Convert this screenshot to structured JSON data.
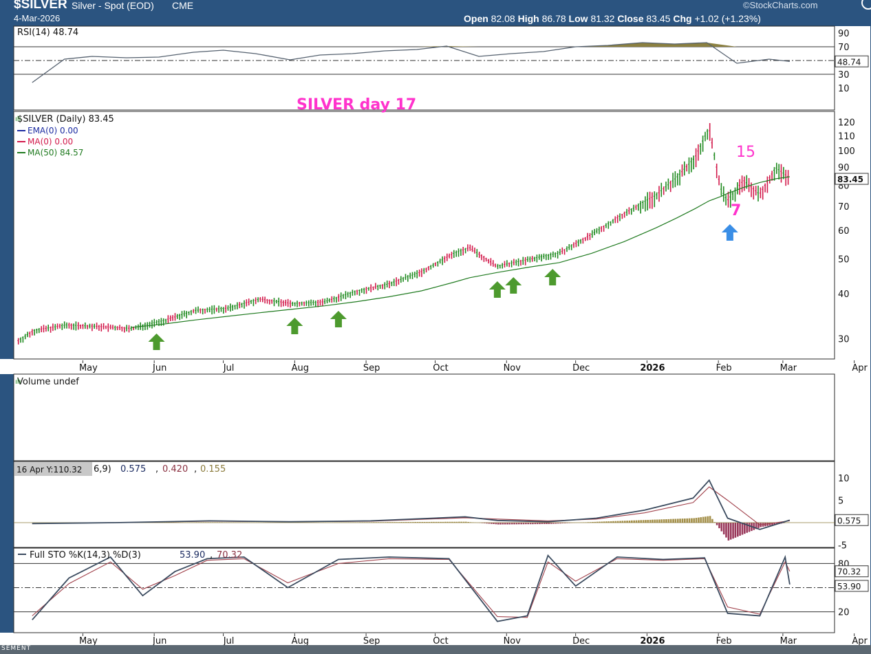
{
  "header": {
    "symbol": "$SILVER",
    "name": "Silver - Spot (EOD)",
    "exchange": "CME",
    "date": "4-Mar-2026",
    "open_label": "Open",
    "open": "82.08",
    "high_label": "High",
    "high": "86.78",
    "low_label": "Low",
    "low": "81.32",
    "close_label": "Close",
    "close": "83.45",
    "chg_label": "Chg",
    "chg": "+1.02 (+1.23%)",
    "watermark": "©StockCharts.com"
  },
  "footer": {
    "text": "SEMENT"
  },
  "colors": {
    "header_bg": "#2b5480",
    "up": "#1f8a1f",
    "down": "#d2184a",
    "ma50": "#1f7a1f",
    "magenta": "#ff33cc",
    "arrow_green": "#4d9a2e",
    "arrow_blue": "#3a8ee6",
    "rsi_fill": "#8b8040",
    "macd_hist_up": "#a4904a",
    "macd_hist_down": "#9a3a5c",
    "line_dark": "#3a4a5e",
    "signal_red": "#a0404a"
  },
  "time_axis": {
    "labels": [
      "May",
      "Jun",
      "Jul",
      "Aug",
      "Sep",
      "Oct",
      "Nov",
      "Dec",
      "2026",
      "Feb",
      "Mar",
      "Apr"
    ],
    "bold": "2026"
  },
  "panels": {
    "rsi": {
      "legend": "RSI(14) 48.74",
      "value_tag": "48.74",
      "ticks": [
        "90",
        "70",
        "50",
        "30",
        "10"
      ]
    },
    "price": {
      "annotation": "SILVER day 17",
      "legend": "$SILVER (Daily) 83.45",
      "legend_items": [
        {
          "text": "EMA(0) 0.00",
          "color": "#1a2aa0"
        },
        {
          "text": "MA(0) 0.00",
          "color": "#d2184a"
        },
        {
          "text": "MA(50) 84.57",
          "color": "#1f7a1f"
        }
      ],
      "value_tag": "83.45",
      "ticks": [
        "120",
        "110",
        "100",
        "90",
        "80",
        "70",
        "60",
        "50",
        "40",
        "30"
      ],
      "cycle_labels": [
        "15",
        "7"
      ]
    },
    "volume": {
      "legend": "Volume undef"
    },
    "macd": {
      "legend_prefix": "6,9)",
      "values": [
        "0.575",
        "0.420",
        "0.155"
      ],
      "tooltip": "16 Apr Y:110.32",
      "value_tag": "0.575",
      "ticks": [
        "10",
        "5",
        "-5"
      ]
    },
    "sto": {
      "legend": "Full STO %K(14,3) %D(3)",
      "values": [
        "53.90",
        "70.32"
      ],
      "value_tags": [
        "70.32",
        "53.90"
      ],
      "ticks": [
        "80",
        "20"
      ]
    }
  },
  "chart_data": [
    {
      "type": "line",
      "title": "RSI(14)",
      "ylim": [
        0,
        100
      ],
      "reference_lines": [
        70,
        50,
        30
      ],
      "x": [
        "Apr-09",
        "Apr-23",
        "May-05",
        "May-20",
        "Jun-03",
        "Jun-18",
        "Jul-01",
        "Jul-15",
        "Jul-30",
        "Aug-12",
        "Aug-26",
        "Sep-09",
        "Sep-23",
        "Oct-06",
        "Oct-20",
        "Nov-03",
        "Nov-17",
        "Dec-01",
        "Dec-15",
        "Dec-30",
        "Jan-13",
        "Jan-27",
        "Feb-09",
        "Feb-23",
        "Mar-04"
      ],
      "values": [
        18,
        52,
        56,
        54,
        55,
        62,
        65,
        60,
        51,
        58,
        60,
        64,
        66,
        71,
        56,
        60,
        63,
        70,
        72,
        76,
        74,
        76,
        46,
        52,
        48.74
      ]
    },
    {
      "type": "line",
      "title": "$SILVER (Daily)",
      "scale": "log",
      "ylim": [
        27,
        125
      ],
      "x": [
        "Apr-03",
        "Apr-10",
        "Apr-24",
        "May-08",
        "May-22",
        "Jun-05",
        "Jun-19",
        "Jul-03",
        "Jul-17",
        "Jul-31",
        "Aug-14",
        "Aug-28",
        "Sep-11",
        "Sep-25",
        "Oct-09",
        "Oct-16",
        "Oct-28",
        "Nov-10",
        "Nov-24",
        "Dec-08",
        "Dec-22",
        "Jan-05",
        "Jan-14",
        "Jan-22",
        "Jan-28",
        "Feb-02",
        "Feb-05",
        "Feb-12",
        "Feb-19",
        "Feb-26",
        "Mar-04"
      ],
      "series": [
        {
          "name": "$SILVER (Daily)",
          "values": [
            29.5,
            31.5,
            32.6,
            32.3,
            31.9,
            33.5,
            35.8,
            36.3,
            38.5,
            37.4,
            37.8,
            40.5,
            42.4,
            45.8,
            51.5,
            53.5,
            47.5,
            49.5,
            51.7,
            58.2,
            66.5,
            74.5,
            83.5,
            95.0,
            115.0,
            78.0,
            72.0,
            82.0,
            75.0,
            89.0,
            83.45
          ]
        },
        {
          "name": "MA(50)",
          "values": [
            null,
            null,
            null,
            null,
            32.2,
            32.9,
            33.8,
            34.6,
            35.4,
            36.2,
            37.0,
            38.0,
            39.2,
            40.7,
            43.0,
            44.3,
            45.8,
            47.3,
            48.8,
            51.8,
            55.8,
            61.0,
            65.0,
            69.0,
            72.5,
            74.5,
            76.0,
            79.0,
            81.5,
            83.5,
            84.57
          ]
        }
      ],
      "annotations": [
        {
          "text": "15",
          "date": "Feb-23"
        },
        {
          "text": "7",
          "date": "Feb-17"
        }
      ],
      "markers": [
        "Jun-02",
        "Aug-01",
        "Aug-20",
        "Oct-28",
        "Nov-04",
        "Nov-21",
        "Feb-06"
      ]
    },
    {
      "type": "line",
      "title": "MACD",
      "x": [
        "Apr-09",
        "May-15",
        "Jun-25",
        "Jul-30",
        "Sep-03",
        "Oct-14",
        "Oct-28",
        "Nov-19",
        "Dec-10",
        "Dec-31",
        "Jan-21",
        "Jan-28",
        "Feb-05",
        "Feb-19",
        "Mar-04"
      ],
      "series": [
        {
          "name": "MACD",
          "values": [
            -0.2,
            0.0,
            0.4,
            0.2,
            0.4,
            1.3,
            0.5,
            0.2,
            1.0,
            2.8,
            5.5,
            9.5,
            1.0,
            -1.5,
            0.575
          ]
        },
        {
          "name": "Signal",
          "values": [
            -0.2,
            0.0,
            0.3,
            0.2,
            0.3,
            1.1,
            0.8,
            0.4,
            0.8,
            2.2,
            4.5,
            8.0,
            5.0,
            -0.5,
            0.42
          ]
        },
        {
          "name": "Histogram",
          "values": [
            0.0,
            0.0,
            0.1,
            0.0,
            0.1,
            0.2,
            -0.4,
            -0.3,
            0.2,
            0.6,
            1.0,
            1.5,
            -4.0,
            -1.0,
            0.155
          ]
        }
      ]
    },
    {
      "type": "line",
      "title": "Full STO %K(14,3) %D(3)",
      "ylim": [
        0,
        100
      ],
      "reference_lines": [
        80,
        50,
        20
      ],
      "x": [
        "Apr-09",
        "Apr-25",
        "May-13",
        "May-27",
        "Jun-10",
        "Jun-24",
        "Jul-10",
        "Jul-29",
        "Aug-20",
        "Sep-11",
        "Oct-07",
        "Oct-28",
        "Nov-10",
        "Nov-19",
        "Dec-01",
        "Dec-19",
        "Jan-08",
        "Jan-26",
        "Feb-05",
        "Feb-19",
        "Mar-02",
        "Mar-04"
      ],
      "series": [
        {
          "name": "%K",
          "values": [
            10,
            62,
            88,
            40,
            70,
            86,
            88,
            50,
            85,
            88,
            86,
            8,
            15,
            90,
            52,
            88,
            85,
            87,
            18,
            15,
            88,
            53.9
          ]
        },
        {
          "name": "%D",
          "values": [
            15,
            55,
            82,
            48,
            65,
            84,
            86,
            56,
            80,
            86,
            85,
            14,
            13,
            82,
            58,
            86,
            84,
            86,
            26,
            17,
            82,
            70.32
          ]
        }
      ]
    }
  ]
}
